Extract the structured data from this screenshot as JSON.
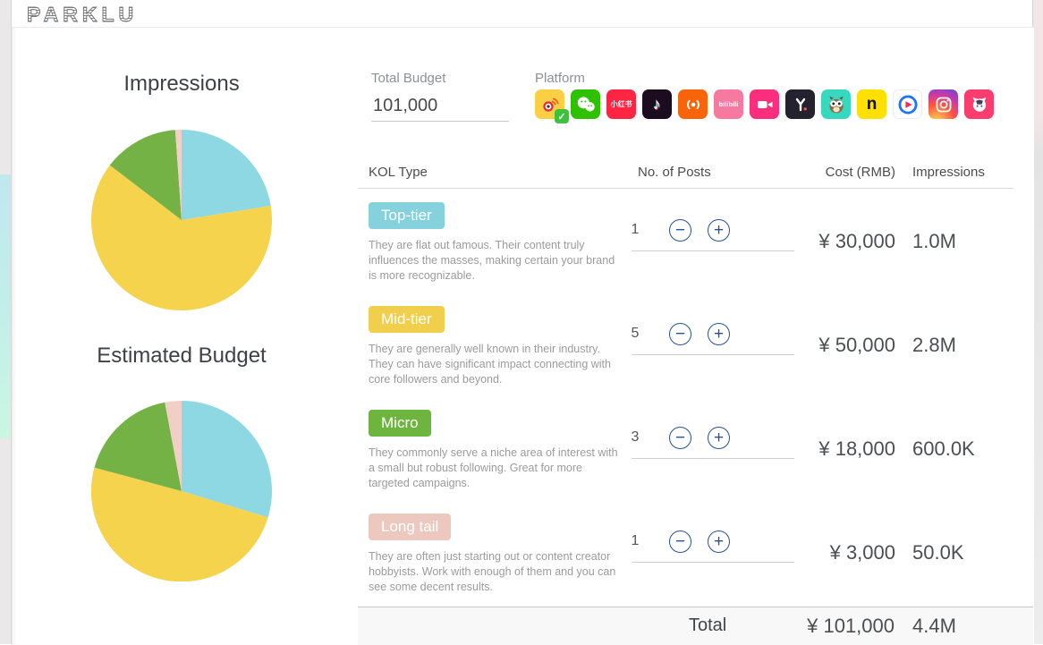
{
  "brand": {
    "logo": "PARKLU"
  },
  "controls": {
    "total_budget": {
      "label": "Total Budget",
      "value": "101,000"
    },
    "platform": {
      "label": "Platform",
      "items": [
        {
          "name": "Weibo",
          "color": "#fbcf44",
          "selected": true
        },
        {
          "name": "WeChat",
          "color": "#2dc100",
          "selected": false
        },
        {
          "name": "Xiaohongshu",
          "color": "#fe2543",
          "selected": false
        },
        {
          "name": "Douyin",
          "color": "#1b0c1f",
          "selected": false
        },
        {
          "name": "Ximalaya FM",
          "color": "#f86409",
          "selected": false
        },
        {
          "name": "Bilibili",
          "color": "#f8799f",
          "selected": false
        },
        {
          "name": "Meipai Video",
          "color": "#fb2e7e",
          "selected": false
        },
        {
          "name": "Yizhibo",
          "color": "#23222e",
          "selected": false
        },
        {
          "name": "Owl App",
          "color": "#36d9c0",
          "selected": false
        },
        {
          "name": "nice",
          "color": "#ffe000",
          "selected": false
        },
        {
          "name": "Tencent Video",
          "color": "#ffffff",
          "selected": false
        },
        {
          "name": "Instagram",
          "color": "gradient-yellow-red-purple",
          "selected": false
        },
        {
          "name": "MaoerFM",
          "color": "#fb3c6e",
          "selected": false
        }
      ]
    }
  },
  "table": {
    "headers": {
      "kol_type": "KOL Type",
      "posts": "No. of Posts",
      "cost": "Cost (RMB)",
      "impressions": "Impressions"
    },
    "rows": [
      {
        "tier": "Top-tier",
        "badge_color": "#85d1dd",
        "description": "They are flat out famous. Their content truly influences the masses, making certain your brand is more recognizable.",
        "posts": "1",
        "cost": "¥ 30,000",
        "impressions": "1.0M"
      },
      {
        "tier": "Mid-tier",
        "badge_color": "#f1cf4d",
        "description": "They are generally well known in their industry. They can have significant impact connecting with core followers and beyond.",
        "posts": "5",
        "cost": "¥ 50,000",
        "impressions": "2.8M"
      },
      {
        "tier": "Micro",
        "badge_color": "#6db53f",
        "description": "They commonly serve a niche area of interest with a small but robust following. Great for more targeted campaigns.",
        "posts": "3",
        "cost": "¥ 18,000",
        "impressions": "600.0K"
      },
      {
        "tier": "Long tail",
        "badge_color": "#edc8bf",
        "description": "They are often just starting out or content creator hobbyists. Work with enough of them and you can see some decent results.",
        "posts": "1",
        "cost": "¥ 3,000",
        "impressions": "50.0K"
      }
    ],
    "total": {
      "label": "Total",
      "cost": "¥ 101,000",
      "impressions": "4.4M"
    }
  },
  "chart_data": [
    {
      "type": "pie",
      "title": "Impressions",
      "labels": [
        "Top-tier",
        "Mid-tier",
        "Micro",
        "Long tail"
      ],
      "values": [
        1000000,
        2800000,
        600000,
        50000
      ],
      "display_values": [
        "1.0M",
        "2.8M",
        "600.0K",
        "50.0K"
      ],
      "colors": [
        "#8ed8e3",
        "#f6d34c",
        "#74b246",
        "#f2cfc6"
      ],
      "start_angle": "top",
      "direction": "clockwise",
      "legend": "none"
    },
    {
      "type": "pie",
      "title": "Estimated Budget",
      "labels": [
        "Top-tier",
        "Mid-tier",
        "Micro",
        "Long tail"
      ],
      "values": [
        30000,
        50000,
        18000,
        3000
      ],
      "display_values": [
        "¥ 30,000",
        "¥ 50,000",
        "¥ 18,000",
        "¥ 3,000"
      ],
      "colors": [
        "#8ed8e3",
        "#f6d34c",
        "#74b246",
        "#f2cfc6"
      ],
      "start_angle": "top",
      "direction": "clockwise",
      "legend": "none"
    }
  ]
}
